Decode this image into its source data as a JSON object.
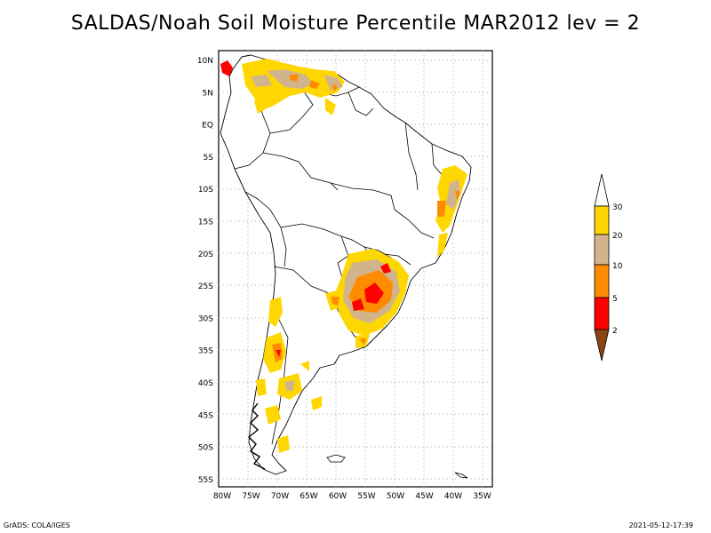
{
  "title": "SALDAS/Noah Soil Moisture Percentile MAR2012 lev = 2",
  "map": {
    "lat_labels": [
      "10N",
      "5N",
      "EQ",
      "5S",
      "10S",
      "15S",
      "20S",
      "25S",
      "30S",
      "35S",
      "40S",
      "45S",
      "50S",
      "55S"
    ],
    "lon_labels": [
      "80W",
      "75W",
      "70W",
      "65W",
      "60W",
      "55W",
      "50W",
      "45W",
      "40W",
      "35W"
    ],
    "lon_range": [
      -80,
      -34
    ],
    "lat_range": [
      -56,
      12
    ],
    "grid": true
  },
  "colorbar": {
    "ticks": [
      "2",
      "5",
      "10",
      "20",
      "30"
    ],
    "colors": [
      "#8b4513",
      "#ff0000",
      "#ff8c00",
      "#d2b48c",
      "#ffd700",
      "#ffffff"
    ]
  },
  "footer": {
    "left": "GrADS: COLA/IGES",
    "right": "2021-05-12-17:39"
  }
}
